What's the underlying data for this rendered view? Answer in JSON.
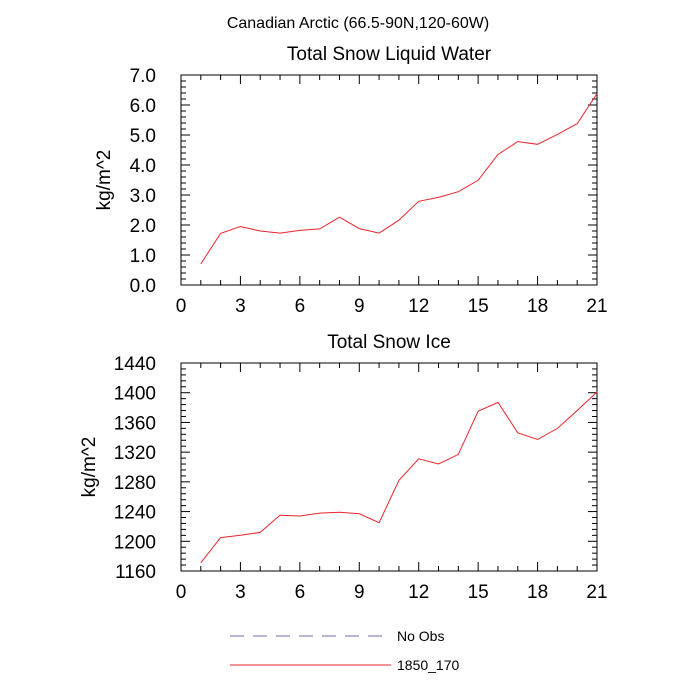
{
  "figure": {
    "title": "Canadian Arctic (66.5-90N,120-60W)"
  },
  "chart_data": [
    {
      "type": "line",
      "title": "Total Snow Liquid Water",
      "xlabel": "",
      "ylabel": "kg/m^2",
      "xlim": [
        0,
        21
      ],
      "ylim": [
        0,
        7
      ],
      "xticks": [
        "0",
        "3",
        "6",
        "9",
        "12",
        "15",
        "18",
        "21"
      ],
      "yticks": [
        "0.0",
        "1.0",
        "2.0",
        "3.0",
        "4.0",
        "5.0",
        "6.0",
        "7.0"
      ],
      "series": [
        {
          "name": "1850_170",
          "color": "#e8252b",
          "x": [
            1,
            2,
            3,
            4,
            5,
            6,
            7,
            8,
            9,
            10,
            11,
            12,
            13,
            14,
            15,
            16,
            17,
            18,
            19,
            20,
            21
          ],
          "values": [
            0.7,
            1.72,
            1.95,
            1.8,
            1.73,
            1.82,
            1.87,
            2.26,
            1.88,
            1.73,
            2.16,
            2.79,
            2.92,
            3.11,
            3.49,
            4.35,
            4.78,
            4.69,
            5.02,
            5.38,
            6.38
          ]
        }
      ]
    },
    {
      "type": "line",
      "title": "Total Snow Ice",
      "xlabel": "",
      "ylabel": "kg/m^2",
      "xlim": [
        0,
        21
      ],
      "ylim": [
        1160,
        1440
      ],
      "xticks": [
        "0",
        "3",
        "6",
        "9",
        "12",
        "15",
        "18",
        "21"
      ],
      "yticks": [
        "1160",
        "1200",
        "1240",
        "1280",
        "1320",
        "1360",
        "1400",
        "1440"
      ],
      "series": [
        {
          "name": "1850_170",
          "color": "#e8252b",
          "x": [
            1,
            2,
            3,
            4,
            5,
            6,
            7,
            8,
            9,
            10,
            11,
            12,
            13,
            14,
            15,
            16,
            17,
            18,
            19,
            20,
            21
          ],
          "values": [
            1171,
            1205,
            1208,
            1212,
            1235,
            1234,
            1238,
            1239,
            1237,
            1225,
            1282,
            1311,
            1304,
            1317,
            1375,
            1387,
            1346,
            1337,
            1352,
            1376,
            1401
          ]
        }
      ]
    }
  ],
  "legend": {
    "placement": "bottom",
    "items": [
      {
        "label": "No Obs",
        "style": "dashed",
        "color": "#6f6fa8"
      },
      {
        "label": "1850_170",
        "style": "solid",
        "color": "#e8252b"
      }
    ]
  }
}
